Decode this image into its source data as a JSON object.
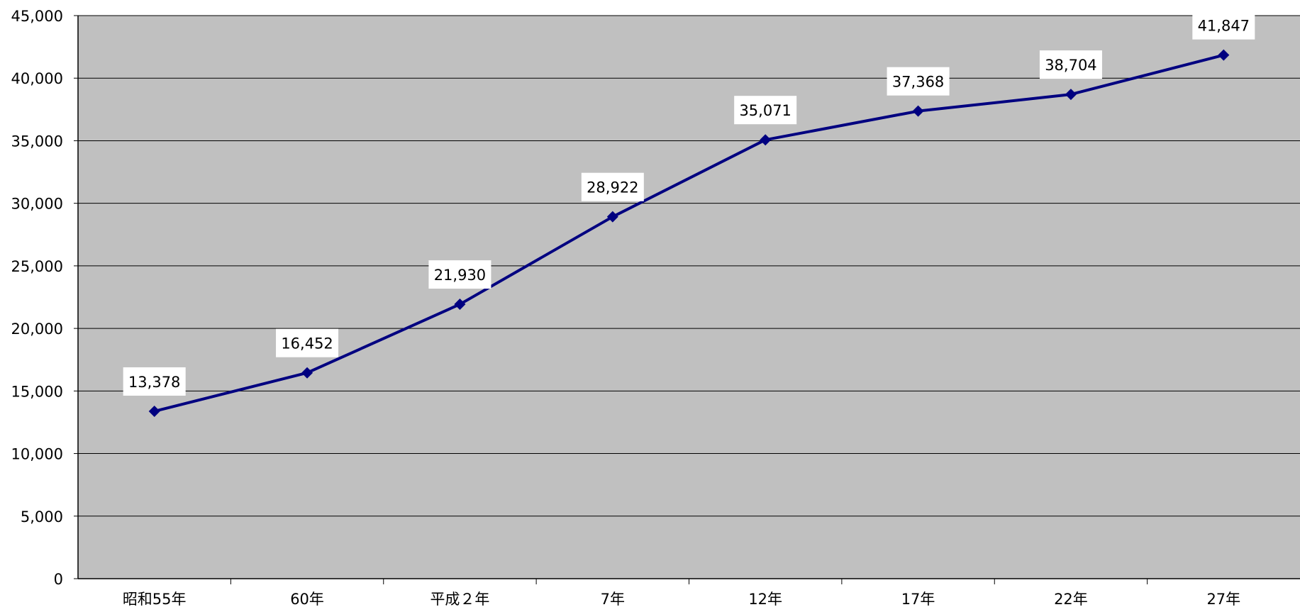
{
  "chart_data": {
    "type": "line",
    "title": "",
    "xlabel": "",
    "ylabel": "",
    "categories": [
      "昭和55年",
      "60年",
      "平成２年",
      "7年",
      "12年",
      "17年",
      "22年",
      "27年"
    ],
    "series": [
      {
        "values": [
          13378,
          16452,
          21930,
          28922,
          35071,
          37368,
          38704,
          41847
        ],
        "labels": [
          "13,378",
          "16,452",
          "21,930",
          "28,922",
          "35,071",
          "37,368",
          "38,704",
          "41,847"
        ]
      }
    ],
    "ylim": [
      0,
      45000
    ],
    "yticks": [
      "0",
      "5,000",
      "10,000",
      "15,000",
      "20,000",
      "25,000",
      "30,000",
      "35,000",
      "40,000",
      "45,000"
    ],
    "grid": true,
    "legend": "none",
    "colors": {
      "line": "#000080",
      "plot_background": "#c0c0c0",
      "gridline": "#000000",
      "label_background": "#ffffff"
    }
  }
}
